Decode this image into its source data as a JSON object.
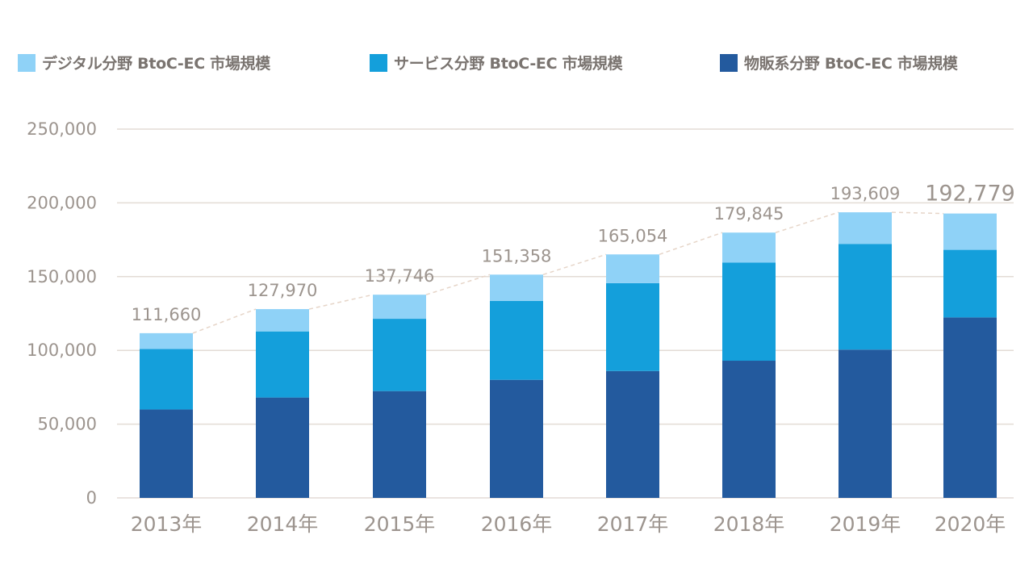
{
  "chart_data": {
    "type": "bar",
    "stacked": true,
    "categories": [
      "2013年",
      "2014年",
      "2015年",
      "2016年",
      "2017年",
      "2018年",
      "2019年",
      "2020年"
    ],
    "series": [
      {
        "name": "物販系分野 BtoC-EC 市場規模",
        "color": "#235a9e",
        "values": [
          59931,
          68043,
          72398,
          80043,
          86008,
          92992,
          100515,
          122333
        ]
      },
      {
        "name": "サービス分野 BtoC-EC 市場規模",
        "color": "#149fdb",
        "values": [
          40983,
          44816,
          49014,
          53532,
          59568,
          66471,
          71672,
          45832
        ]
      },
      {
        "name": "デジタル分野 BtoC-EC 市場規模",
        "color": "#8fd2f7",
        "values": [
          10746,
          15111,
          16334,
          17783,
          19478,
          20382,
          21422,
          24614
        ]
      }
    ],
    "totals": [
      "111,660",
      "127,970",
      "137,746",
      "151,358",
      "165,054",
      "179,845",
      "193,609",
      "192,779"
    ],
    "yticks": [
      "0",
      "50,000",
      "100,000",
      "150,000",
      "200,000",
      "250,000"
    ],
    "ylim": [
      0,
      250000
    ],
    "grid": true,
    "legend": "top",
    "legend_order": [
      "デジタル分野 BtoC-EC 市場規模",
      "サービス分野 BtoC-EC 市場規模",
      "物販系分野 BtoC-EC 市場規模"
    ],
    "title": "",
    "xlabel": "",
    "ylabel": ""
  },
  "colors": {
    "grid": "#e3dcd5",
    "axis_text": "#9c948e",
    "trend_line": "#e6d5c8"
  }
}
